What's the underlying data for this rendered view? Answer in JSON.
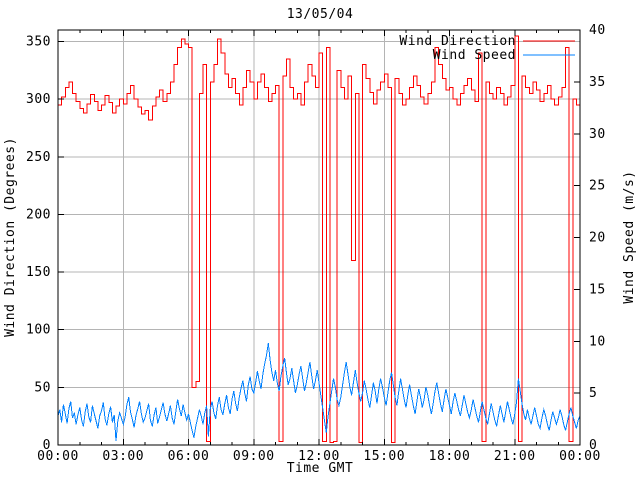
{
  "title": "13/05/04",
  "axes": {
    "x": {
      "label": "Time GMT",
      "ticks": [
        "00:00",
        "03:00",
        "06:00",
        "09:00",
        "12:00",
        "15:00",
        "18:00",
        "21:00",
        "00:00"
      ],
      "major_tick_interval_min": 180,
      "minor_tick_interval_min": 60
    },
    "y_left": {
      "label": "Wind Direction (Degrees)",
      "min": 0,
      "max": 360,
      "tick_step": 50,
      "ticks": [
        "0",
        "50",
        "100",
        "150",
        "200",
        "250",
        "300",
        "350"
      ]
    },
    "y_right": {
      "label": "Wind Speed (m/s)",
      "min": 0,
      "max": 40,
      "tick_step": 5,
      "ticks": [
        "0",
        "5",
        "10",
        "15",
        "20",
        "25",
        "30",
        "35",
        "40"
      ]
    }
  },
  "legend": [
    {
      "label": "Wind Direction",
      "color": "#ff0000"
    },
    {
      "label": "Wind Speed",
      "color": "#0080ff"
    }
  ],
  "colors": {
    "background": "#ffffff",
    "frame": "#000000",
    "grid": "#b4b4b4",
    "wind_direction": "#ff0000",
    "wind_speed": "#0080ff",
    "text": "#000000"
  },
  "chart_data": {
    "type": "line",
    "title": "13/05/04",
    "xlabel": "Time GMT",
    "x_ticks": [
      "00:00",
      "03:00",
      "06:00",
      "09:00",
      "12:00",
      "15:00",
      "18:00",
      "21:00",
      "00:00"
    ],
    "x_range_min": [
      0,
      1440
    ],
    "y_left_range": [
      0,
      360
    ],
    "y_right_range": [
      0,
      40
    ],
    "grid": true,
    "legend_position": "top-right",
    "series": [
      {
        "name": "Wind Direction",
        "axis": "left",
        "unit": "degrees",
        "style": "steps",
        "color": "#ff0000",
        "sample_interval_min": 10,
        "values": [
          295,
          302,
          310,
          315,
          305,
          298,
          292,
          288,
          296,
          304,
          298,
          290,
          295,
          303,
          297,
          288,
          294,
          300,
          296,
          305,
          312,
          300,
          293,
          287,
          290,
          282,
          294,
          302,
          308,
          298,
          305,
          315,
          330,
          345,
          352,
          348,
          345,
          50,
          55,
          305,
          330,
          3,
          315,
          330,
          352,
          340,
          322,
          310,
          318,
          305,
          295,
          310,
          325,
          315,
          300,
          315,
          322,
          310,
          298,
          305,
          312,
          3,
          320,
          335,
          310,
          300,
          305,
          295,
          315,
          330,
          320,
          310,
          340,
          3,
          345,
          2,
          3,
          325,
          310,
          300,
          320,
          160,
          305,
          2,
          330,
          318,
          306,
          296,
          308,
          315,
          322,
          310,
          2,
          318,
          305,
          295,
          300,
          310,
          320,
          312,
          302,
          296,
          305,
          315,
          345,
          330,
          318,
          308,
          310,
          300,
          295,
          305,
          312,
          318,
          308,
          298,
          340,
          3,
          315,
          305,
          300,
          310,
          305,
          295,
          302,
          312,
          355,
          3,
          320,
          310,
          305,
          315,
          308,
          298,
          305,
          312,
          300,
          295,
          302,
          310,
          345,
          3,
          300,
          295,
          298
        ]
      },
      {
        "name": "Wind Speed",
        "axis": "right",
        "unit": "m/s",
        "style": "line",
        "color": "#0080ff",
        "sample_interval_min": 5,
        "values": [
          2.8,
          3.4,
          2.2,
          3.9,
          3.0,
          2.1,
          3.5,
          4.2,
          2.6,
          3.1,
          2.0,
          2.9,
          3.6,
          2.4,
          1.8,
          3.2,
          4.0,
          2.7,
          2.2,
          3.8,
          3.0,
          2.3,
          1.6,
          2.8,
          3.3,
          4.1,
          2.5,
          1.9,
          3.0,
          3.7,
          2.2,
          2.9,
          0.4,
          2.3,
          3.1,
          2.6,
          2.0,
          2.7,
          3.9,
          4.6,
          3.2,
          2.5,
          1.7,
          2.8,
          3.5,
          4.2,
          3.0,
          2.2,
          2.6,
          3.3,
          4.0,
          2.4,
          1.8,
          2.9,
          3.6,
          2.1,
          2.7,
          3.4,
          4.1,
          3.0,
          2.3,
          3.0,
          3.8,
          2.6,
          2.0,
          3.2,
          4.4,
          3.5,
          2.8,
          3.9,
          3.1,
          2.4,
          3.0,
          2.2,
          1.4,
          0.7,
          1.8,
          2.6,
          3.4,
          2.8,
          2.0,
          3.1,
          3.8,
          0.8,
          3.5,
          4.2,
          3.1,
          2.5,
          3.8,
          4.6,
          3.4,
          2.9,
          4.0,
          4.8,
          3.6,
          3.0,
          4.4,
          5.2,
          4.0,
          3.3,
          4.6,
          5.5,
          6.2,
          5.0,
          4.2,
          5.8,
          6.6,
          5.4,
          5.0,
          6.0,
          7.1,
          6.2,
          5.4,
          6.8,
          7.8,
          8.6,
          9.8,
          8.2,
          7.0,
          6.2,
          7.2,
          6.0,
          5.2,
          6.6,
          7.6,
          8.4,
          7.0,
          5.8,
          6.4,
          7.4,
          6.2,
          5.0,
          5.8,
          6.8,
          7.6,
          6.4,
          5.2,
          6.0,
          7.0,
          8.0,
          6.6,
          5.4,
          6.2,
          7.2,
          6.0,
          4.8,
          3.6,
          2.4,
          1.2,
          2.8,
          4.0,
          5.2,
          6.4,
          5.6,
          4.4,
          3.8,
          4.6,
          5.8,
          7.0,
          8.0,
          6.8,
          5.6,
          4.8,
          6.0,
          7.2,
          6.0,
          5.0,
          4.2,
          5.0,
          6.2,
          5.4,
          4.4,
          3.6,
          4.8,
          6.0,
          5.2,
          4.0,
          5.4,
          6.4,
          5.6,
          4.6,
          3.8,
          5.0,
          6.2,
          7.0,
          5.8,
          4.6,
          3.8,
          5.2,
          6.4,
          5.4,
          4.4,
          3.6,
          4.8,
          5.8,
          4.8,
          3.8,
          3.0,
          4.2,
          5.4,
          4.6,
          3.6,
          4.4,
          5.6,
          4.8,
          3.8,
          3.0,
          4.0,
          5.2,
          6.0,
          5.0,
          4.0,
          3.2,
          4.4,
          5.4,
          4.6,
          3.8,
          3.0,
          4.2,
          5.0,
          4.2,
          3.4,
          2.8,
          3.8,
          4.8,
          4.0,
          3.2,
          2.6,
          3.4,
          4.4,
          3.6,
          2.8,
          2.2,
          3.2,
          4.2,
          3.4,
          2.6,
          2.0,
          3.0,
          4.0,
          3.2,
          2.4,
          1.8,
          2.8,
          3.8,
          3.0,
          2.2,
          3.2,
          4.2,
          3.4,
          2.6,
          2.0,
          3.0,
          4.2,
          6.4,
          5.2,
          4.0,
          3.0,
          2.4,
          3.4,
          2.6,
          2.0,
          2.8,
          3.6,
          2.8,
          2.0,
          1.6,
          2.6,
          3.4,
          2.8,
          2.0,
          1.4,
          2.4,
          3.2,
          2.6,
          2.0,
          2.6,
          3.4,
          2.8,
          2.0,
          1.4,
          2.2,
          3.0,
          3.6,
          2.8,
          2.2,
          1.6,
          2.4,
          2.8
        ]
      }
    ]
  }
}
